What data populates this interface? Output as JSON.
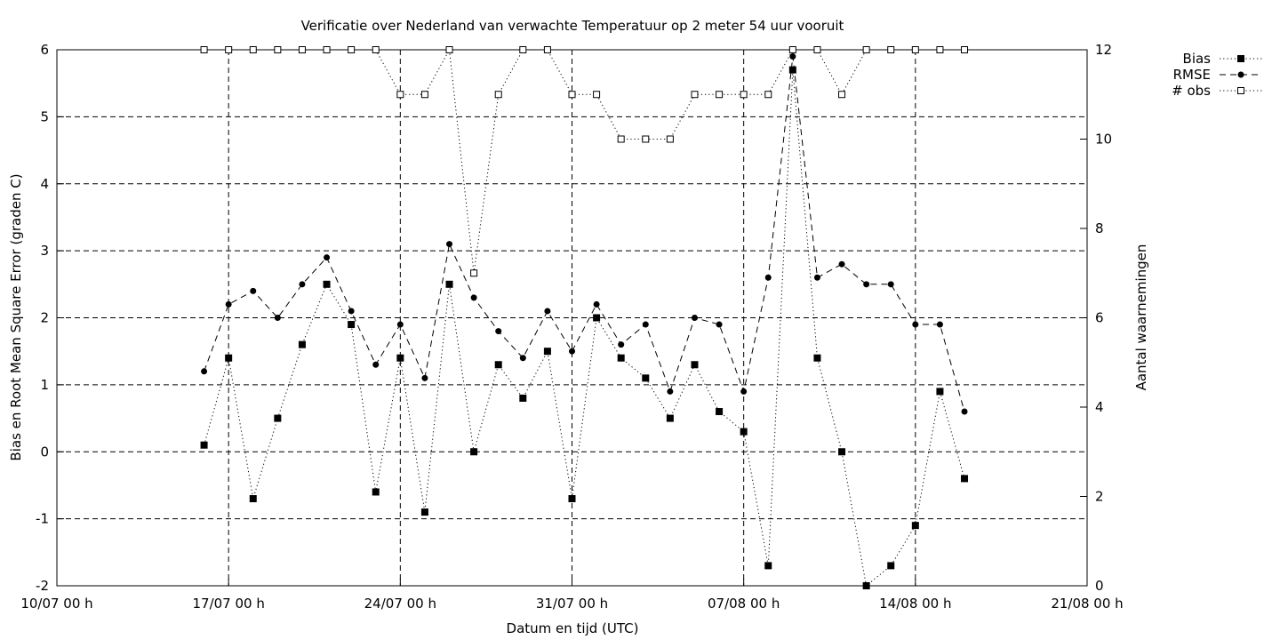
{
  "chart_data": {
    "type": "line",
    "title": "Verificatie over Nederland van verwachte Temperatuur op 2 meter 54 uur vooruit",
    "xlabel": "Datum en tijd (UTC)",
    "ylabel": "Bias en Root Mean Square Error (graden C)",
    "y2label": "Aantal waarnemingen",
    "xlim": [
      "2023-07-10",
      "2023-08-21"
    ],
    "x_tick_labels": [
      "10/07 00 h",
      "17/07 00 h",
      "24/07 00 h",
      "31/07 00 h",
      "07/08 00 h",
      "14/08 00 h",
      "21/08 00 h"
    ],
    "ylim": [
      -2,
      6
    ],
    "y_ticks": [
      -2,
      -1,
      0,
      1,
      2,
      3,
      4,
      5,
      6
    ],
    "y2lim": [
      0,
      12
    ],
    "y2_ticks": [
      0,
      2,
      4,
      6,
      8,
      10,
      12
    ],
    "grid": true,
    "legend_position": "outside-top-right",
    "x": [
      "2023-07-16",
      "2023-07-17",
      "2023-07-18",
      "2023-07-19",
      "2023-07-20",
      "2023-07-21",
      "2023-07-22",
      "2023-07-23",
      "2023-07-24",
      "2023-07-25",
      "2023-07-26",
      "2023-07-27",
      "2023-07-28",
      "2023-07-29",
      "2023-07-30",
      "2023-07-31",
      "2023-08-01",
      "2023-08-02",
      "2023-08-03",
      "2023-08-04",
      "2023-08-05",
      "2023-08-06",
      "2023-08-07",
      "2023-08-08",
      "2023-08-09",
      "2023-08-10",
      "2023-08-11",
      "2023-08-12",
      "2023-08-13",
      "2023-08-14",
      "2023-08-15",
      "2023-08-16"
    ],
    "series": [
      {
        "name": "Bias",
        "axis": "y1",
        "marker": "filled-square",
        "line": "dotted",
        "values": [
          0.1,
          1.4,
          -0.7,
          0.5,
          1.6,
          2.5,
          1.9,
          -0.6,
          1.4,
          -0.9,
          2.5,
          0.0,
          1.3,
          0.8,
          1.5,
          -0.7,
          2.0,
          1.4,
          1.1,
          0.5,
          1.3,
          0.6,
          0.3,
          -1.7,
          5.7,
          1.4,
          0.0,
          -2.0,
          -1.7,
          -1.1,
          0.9,
          -0.4
        ]
      },
      {
        "name": "RMSE",
        "axis": "y1",
        "marker": "filled-circle",
        "line": "dashed",
        "values": [
          1.2,
          2.2,
          2.4,
          2.0,
          2.5,
          2.9,
          2.1,
          1.3,
          1.9,
          1.1,
          3.1,
          2.3,
          1.8,
          1.4,
          2.1,
          1.5,
          2.2,
          1.6,
          1.9,
          0.9,
          2.0,
          1.9,
          0.9,
          2.6,
          5.9,
          2.6,
          2.8,
          2.5,
          2.5,
          1.9,
          1.9,
          0.6
        ]
      },
      {
        "name": "# obs",
        "axis": "y2",
        "marker": "open-square",
        "line": "dotted",
        "values": [
          12,
          12,
          12,
          12,
          12,
          12,
          12,
          12,
          11,
          11,
          12,
          7,
          11,
          12,
          12,
          11,
          11,
          10,
          10,
          10,
          11,
          11,
          11,
          11,
          12,
          12,
          11,
          12,
          12,
          12,
          12,
          12
        ]
      }
    ]
  }
}
